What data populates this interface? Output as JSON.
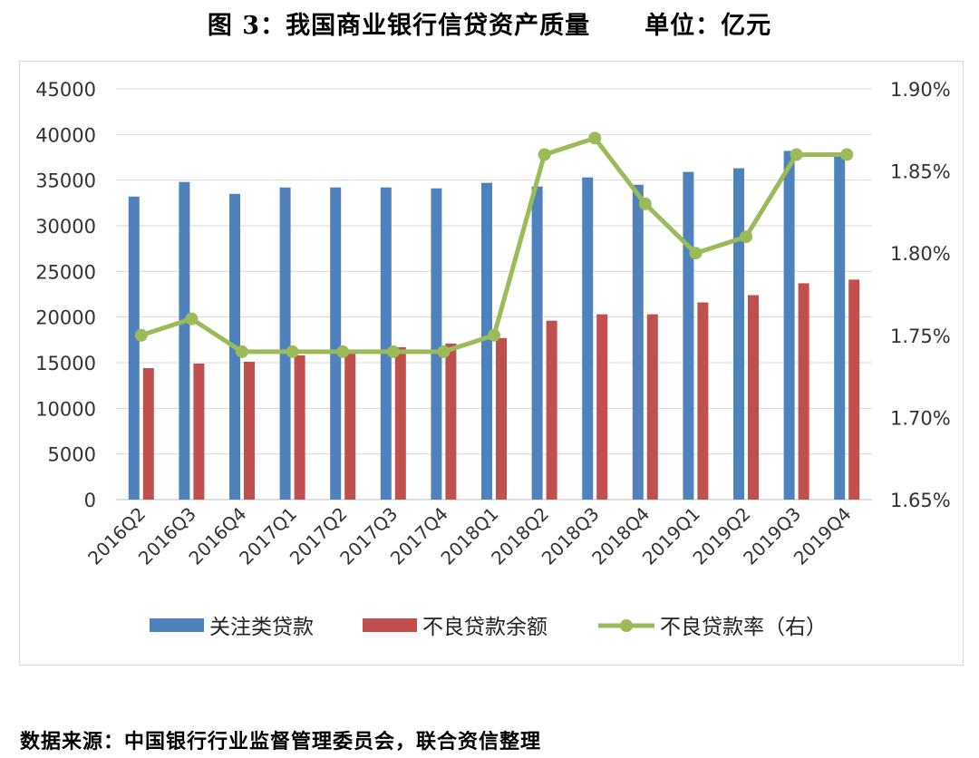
{
  "header": {
    "title": "图 3：我国商业银行信贷资产质量",
    "unit": "单位：亿元"
  },
  "footer": {
    "source": "数据来源：中国银行行业监督管理委员会，联合资信整理"
  },
  "chart_data": {
    "type": "bar",
    "categories": [
      "2016Q2",
      "2016Q3",
      "2016Q4",
      "2017Q1",
      "2017Q2",
      "2017Q3",
      "2017Q4",
      "2018Q1",
      "2018Q2",
      "2018Q3",
      "2018Q4",
      "2019Q1",
      "2019Q2",
      "2019Q3",
      "2019Q4"
    ],
    "series": [
      {
        "name": "关注类贷款",
        "type": "bar",
        "axis": "left",
        "color": "#4f81bd",
        "values": [
          33200,
          34800,
          33500,
          34200,
          34200,
          34200,
          34100,
          34700,
          34300,
          35300,
          34500,
          35900,
          36300,
          38200,
          38000
        ]
      },
      {
        "name": "不良贷款余额",
        "type": "bar",
        "axis": "left",
        "color": "#c0504d",
        "values": [
          14400,
          14900,
          15100,
          15800,
          16000,
          16700,
          17100,
          17700,
          19600,
          20300,
          20300,
          21600,
          22400,
          23700,
          24100
        ]
      },
      {
        "name": "不良贷款率（右）",
        "type": "line",
        "axis": "right",
        "color": "#9bbb59",
        "values": [
          1.75,
          1.76,
          1.74,
          1.74,
          1.74,
          1.74,
          1.74,
          1.75,
          1.86,
          1.87,
          1.83,
          1.8,
          1.81,
          1.86,
          1.86
        ]
      }
    ],
    "y_left": {
      "min": 0,
      "max": 45000,
      "step": 5000,
      "ticks": [
        "0",
        "5000",
        "10000",
        "15000",
        "20000",
        "25000",
        "30000",
        "35000",
        "40000",
        "45000"
      ]
    },
    "y_right": {
      "min": 1.65,
      "max": 1.9,
      "ticks": [
        "1.65%",
        "1.70%",
        "1.75%",
        "1.80%",
        "1.85%",
        "1.90%"
      ]
    },
    "grid": true,
    "legend": "bottom"
  }
}
